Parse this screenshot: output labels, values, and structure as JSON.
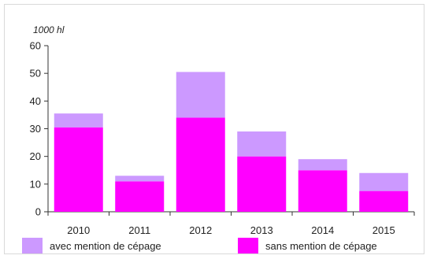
{
  "chart_data": {
    "type": "bar",
    "stacked": true,
    "unit_label": "1000 hl",
    "categories": [
      "2010",
      "2011",
      "2012",
      "2013",
      "2014",
      "2015"
    ],
    "series": [
      {
        "name": "sans mention de cépage",
        "values": [
          30.5,
          11,
          34,
          20,
          15,
          7.5
        ],
        "color": "#ff00ff"
      },
      {
        "name": "avec mention de cépage",
        "values": [
          5,
          2,
          16.5,
          9,
          4,
          6.5
        ],
        "color": "#cc99ff"
      }
    ],
    "legend_order": [
      1,
      0
    ],
    "ylim": [
      0,
      60
    ],
    "yticks": [
      0,
      10,
      20,
      30,
      40,
      50,
      60
    ],
    "grid": false,
    "legend_position": "bottom"
  }
}
